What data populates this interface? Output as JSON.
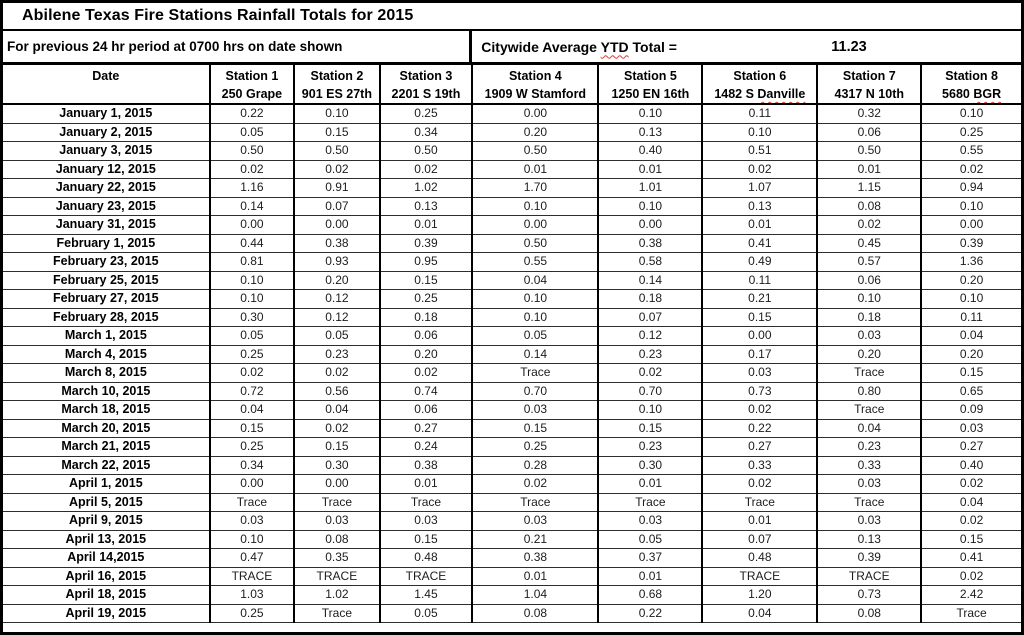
{
  "title": "Abilene Texas Fire Stations Rainfall Totals for 2015",
  "subtitle": "For previous 24 hr period at 0700 hrs on date shown",
  "ytd": {
    "label_pre": "Citywide Average ",
    "label_wavy": "YTD",
    "label_post": " Total =",
    "value": "11.23"
  },
  "colors": {
    "border": "#000000",
    "spellcheck_underline": "#e03c31",
    "background": "#ffffff"
  },
  "table": {
    "date_header": "Date",
    "stations": [
      {
        "name": "Station 1",
        "address": "250 Grape"
      },
      {
        "name": "Station 2",
        "address": "901 ES 27th"
      },
      {
        "name": "Station 3",
        "address": "2201 S 19th"
      },
      {
        "name": "Station 4",
        "address": "1909 W Stamford"
      },
      {
        "name": "Station 5",
        "address": "1250 EN 16th"
      },
      {
        "name": "Station 6",
        "address_pre": "1482 S ",
        "address_wavy": "Danville"
      },
      {
        "name": "Station 7",
        "address": "4317 N 10th"
      },
      {
        "name": "Station 8",
        "address_pre": "5680 ",
        "address_wavy": "BGR"
      }
    ],
    "rows": [
      {
        "date": "January 1, 2015",
        "values": [
          "0.22",
          "0.10",
          "0.25",
          "0.00",
          "0.10",
          "0.11",
          "0.32",
          "0.10"
        ]
      },
      {
        "date": "January 2, 2015",
        "values": [
          "0.05",
          "0.15",
          "0.34",
          "0.20",
          "0.13",
          "0.10",
          "0.06",
          "0.25"
        ]
      },
      {
        "date": "January 3, 2015",
        "values": [
          "0.50",
          "0.50",
          "0.50",
          "0.50",
          "0.40",
          "0.51",
          "0.50",
          "0.55"
        ]
      },
      {
        "date": "January 12, 2015",
        "values": [
          "0.02",
          "0.02",
          "0.02",
          "0.01",
          "0.01",
          "0.02",
          "0.01",
          "0.02"
        ]
      },
      {
        "date": "January 22, 2015",
        "values": [
          "1.16",
          "0.91",
          "1.02",
          "1.70",
          "1.01",
          "1.07",
          "1.15",
          "0.94"
        ]
      },
      {
        "date": "January 23, 2015",
        "values": [
          "0.14",
          "0.07",
          "0.13",
          "0.10",
          "0.10",
          "0.13",
          "0.08",
          "0.10"
        ]
      },
      {
        "date": "January 31, 2015",
        "values": [
          "0.00",
          "0.00",
          "0.01",
          "0.00",
          "0.00",
          "0.01",
          "0.02",
          "0.00"
        ]
      },
      {
        "date": "February 1, 2015",
        "values": [
          "0.44",
          "0.38",
          "0.39",
          "0.50",
          "0.38",
          "0.41",
          "0.45",
          "0.39"
        ]
      },
      {
        "date": "February 23, 2015",
        "values": [
          "0.81",
          "0.93",
          "0.95",
          "0.55",
          "0.58",
          "0.49",
          "0.57",
          "1.36"
        ]
      },
      {
        "date": "February 25, 2015",
        "values": [
          "0.10",
          "0.20",
          "0.15",
          "0.04",
          "0.14",
          "0.11",
          "0.06",
          "0.20"
        ]
      },
      {
        "date": "February 27, 2015",
        "values": [
          "0.10",
          "0.12",
          "0.25",
          "0.10",
          "0.18",
          "0.21",
          "0.10",
          "0.10"
        ]
      },
      {
        "date": "February 28, 2015",
        "values": [
          "0.30",
          "0.12",
          "0.18",
          "0.10",
          "0.07",
          "0.15",
          "0.18",
          "0.11"
        ]
      },
      {
        "date": "March 1, 2015",
        "values": [
          "0.05",
          "0.05",
          "0.06",
          "0.05",
          "0.12",
          "0.00",
          "0.03",
          "0.04"
        ]
      },
      {
        "date": "March 4, 2015",
        "values": [
          "0.25",
          "0.23",
          "0.20",
          "0.14",
          "0.23",
          "0.17",
          "0.20",
          "0.20"
        ]
      },
      {
        "date": "March 8, 2015",
        "values": [
          "0.02",
          "0.02",
          "0.02",
          "Trace",
          "0.02",
          "0.03",
          "Trace",
          "0.15"
        ]
      },
      {
        "date": "March 10, 2015",
        "values": [
          "0.72",
          "0.56",
          "0.74",
          "0.70",
          "0.70",
          "0.73",
          "0.80",
          "0.65"
        ]
      },
      {
        "date": "March 18, 2015",
        "values": [
          "0.04",
          "0.04",
          "0.06",
          "0.03",
          "0.10",
          "0.02",
          "Trace",
          "0.09"
        ]
      },
      {
        "date": "March 20, 2015",
        "values": [
          "0.15",
          "0.02",
          "0.27",
          "0.15",
          "0.15",
          "0.22",
          "0.04",
          "0.03"
        ]
      },
      {
        "date": "March 21, 2015",
        "values": [
          "0.25",
          "0.15",
          "0.24",
          "0.25",
          "0.23",
          "0.27",
          "0.23",
          "0.27"
        ]
      },
      {
        "date": "March 22, 2015",
        "values": [
          "0.34",
          "0.30",
          "0.38",
          "0.28",
          "0.30",
          "0.33",
          "0.33",
          "0.40"
        ]
      },
      {
        "date": "April 1, 2015",
        "values": [
          "0.00",
          "0.00",
          "0.01",
          "0.02",
          "0.01",
          "0.02",
          "0.03",
          "0.02"
        ]
      },
      {
        "date": "April 5, 2015",
        "values": [
          "Trace",
          "Trace",
          "Trace",
          "Trace",
          "Trace",
          "Trace",
          "Trace",
          "0.04"
        ]
      },
      {
        "date": "April 9, 2015",
        "values": [
          "0.03",
          "0.03",
          "0.03",
          "0.03",
          "0.03",
          "0.01",
          "0.03",
          "0.02"
        ]
      },
      {
        "date": "April 13, 2015",
        "values": [
          "0.10",
          "0.08",
          "0.15",
          "0.21",
          "0.05",
          "0.07",
          "0.13",
          "0.15"
        ]
      },
      {
        "date": "April 14,2015",
        "values": [
          "0.47",
          "0.35",
          "0.48",
          "0.38",
          "0.37",
          "0.48",
          "0.39",
          "0.41"
        ]
      },
      {
        "date": "April 16, 2015",
        "values": [
          "TRACE",
          "TRACE",
          "TRACE",
          "0.01",
          "0.01",
          "TRACE",
          "TRACE",
          "0.02"
        ]
      },
      {
        "date": "April 18, 2015",
        "values": [
          "1.03",
          "1.02",
          "1.45",
          "1.04",
          "0.68",
          "1.20",
          "0.73",
          "2.42"
        ]
      },
      {
        "date": "April 19, 2015",
        "values": [
          "0.25",
          "Trace",
          "0.05",
          "0.08",
          "0.22",
          "0.04",
          "0.08",
          "Trace"
        ]
      }
    ]
  }
}
